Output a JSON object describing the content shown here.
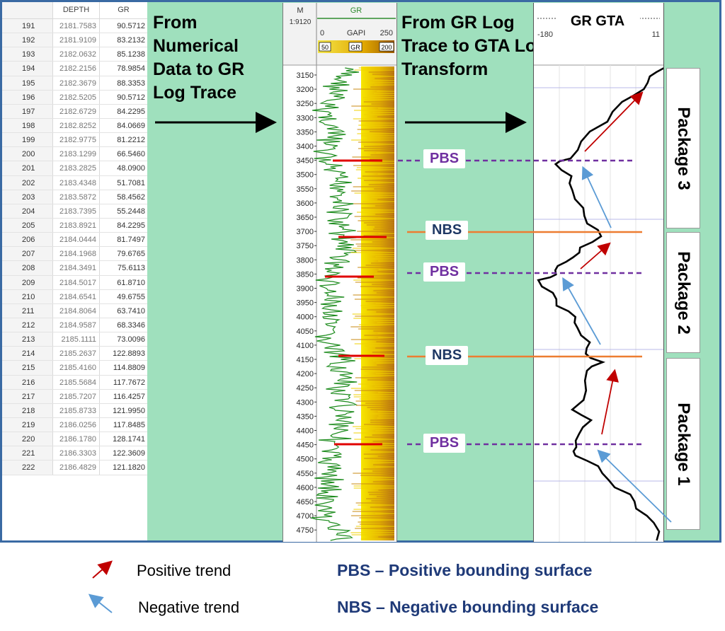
{
  "table": {
    "headers": [
      "DEPTH",
      "GR"
    ],
    "rows": [
      {
        "idx": "191",
        "depth": "2181.7583",
        "gr": "90.5712"
      },
      {
        "idx": "192",
        "depth": "2181.9109",
        "gr": "83.2132"
      },
      {
        "idx": "193",
        "depth": "2182.0632",
        "gr": "85.1238"
      },
      {
        "idx": "194",
        "depth": "2182.2156",
        "gr": "78.9854"
      },
      {
        "idx": "195",
        "depth": "2182.3679",
        "gr": "88.3353"
      },
      {
        "idx": "196",
        "depth": "2182.5205",
        "gr": "90.5712"
      },
      {
        "idx": "197",
        "depth": "2182.6729",
        "gr": "84.2295"
      },
      {
        "idx": "198",
        "depth": "2182.8252",
        "gr": "84.0669"
      },
      {
        "idx": "199",
        "depth": "2182.9775",
        "gr": "81.2212"
      },
      {
        "idx": "200",
        "depth": "2183.1299",
        "gr": "66.5460"
      },
      {
        "idx": "201",
        "depth": "2183.2825",
        "gr": "48.0900"
      },
      {
        "idx": "202",
        "depth": "2183.4348",
        "gr": "51.7081"
      },
      {
        "idx": "203",
        "depth": "2183.5872",
        "gr": "58.4562"
      },
      {
        "idx": "204",
        "depth": "2183.7395",
        "gr": "55.2448"
      },
      {
        "idx": "205",
        "depth": "2183.8921",
        "gr": "84.2295"
      },
      {
        "idx": "206",
        "depth": "2184.0444",
        "gr": "81.7497"
      },
      {
        "idx": "207",
        "depth": "2184.1968",
        "gr": "79.6765"
      },
      {
        "idx": "208",
        "depth": "2184.3491",
        "gr": "75.6113"
      },
      {
        "idx": "209",
        "depth": "2184.5017",
        "gr": "61.8710"
      },
      {
        "idx": "210",
        "depth": "2184.6541",
        "gr": "49.6755"
      },
      {
        "idx": "211",
        "depth": "2184.8064",
        "gr": "63.7410"
      },
      {
        "idx": "212",
        "depth": "2184.9587",
        "gr": "68.3346"
      },
      {
        "idx": "213",
        "depth": "2185.1111",
        "gr": "73.0096"
      },
      {
        "idx": "214",
        "depth": "2185.2637",
        "gr": "122.8893"
      },
      {
        "idx": "215",
        "depth": "2185.4160",
        "gr": "114.8809"
      },
      {
        "idx": "216",
        "depth": "2185.5684",
        "gr": "117.7672"
      },
      {
        "idx": "217",
        "depth": "2185.7207",
        "gr": "116.4257"
      },
      {
        "idx": "218",
        "depth": "2185.8733",
        "gr": "121.9950"
      },
      {
        "idx": "219",
        "depth": "2186.0256",
        "gr": "117.8485"
      },
      {
        "idx": "220",
        "depth": "2186.1780",
        "gr": "128.1741"
      },
      {
        "idx": "221",
        "depth": "2186.3303",
        "gr": "122.3609"
      },
      {
        "idx": "222",
        "depth": "2186.4829",
        "gr": "121.1820"
      }
    ]
  },
  "titles": {
    "left": "From Numerical Data to GR Log Trace",
    "right": "From GR Log Trace to GTA Log Transform"
  },
  "log_track": {
    "depth_unit": "M",
    "scale": "1:9120",
    "curve": "GR",
    "range_min": "0",
    "unit": "GAPI",
    "range_max": "250",
    "legend_left": "50",
    "legend_mid": "GR",
    "legend_right": "200",
    "depth_ticks": [
      "3150",
      "3200",
      "3250",
      "3300",
      "3350",
      "3400",
      "3450",
      "3500",
      "3550",
      "3600",
      "3650",
      "3700",
      "3750",
      "3800",
      "3850",
      "3900",
      "3950",
      "4000",
      "4050",
      "4100",
      "4150",
      "4200",
      "4250",
      "4300",
      "4350",
      "4400",
      "4450",
      "4500",
      "4550",
      "4600",
      "4650",
      "4700",
      "4750"
    ]
  },
  "gta_track": {
    "title": "GR GTA",
    "range_min": "-180",
    "range_max": "11"
  },
  "surfaces": [
    {
      "label": "PBS",
      "kind": "pbs"
    },
    {
      "label": "NBS",
      "kind": "nbs"
    },
    {
      "label": "PBS",
      "kind": "pbs"
    },
    {
      "label": "NBS",
      "kind": "nbs"
    },
    {
      "label": "PBS",
      "kind": "pbs"
    }
  ],
  "packages": [
    "Package 3",
    "Package 2",
    "Package 1"
  ],
  "legend": {
    "positive_label": "Positive trend",
    "negative_label": "Negative trend",
    "pbs_def": "PBS – Positive bounding surface",
    "nbs_def": "NBS – Negative bounding surface"
  },
  "colors": {
    "background": "#9fe0bd",
    "positive_arrow": "#c00000",
    "negative_arrow": "#5b9bd5",
    "pbs": "#7030a0",
    "nbs_line": "#ed7d31",
    "gr_curve": "#1e8c1e"
  }
}
